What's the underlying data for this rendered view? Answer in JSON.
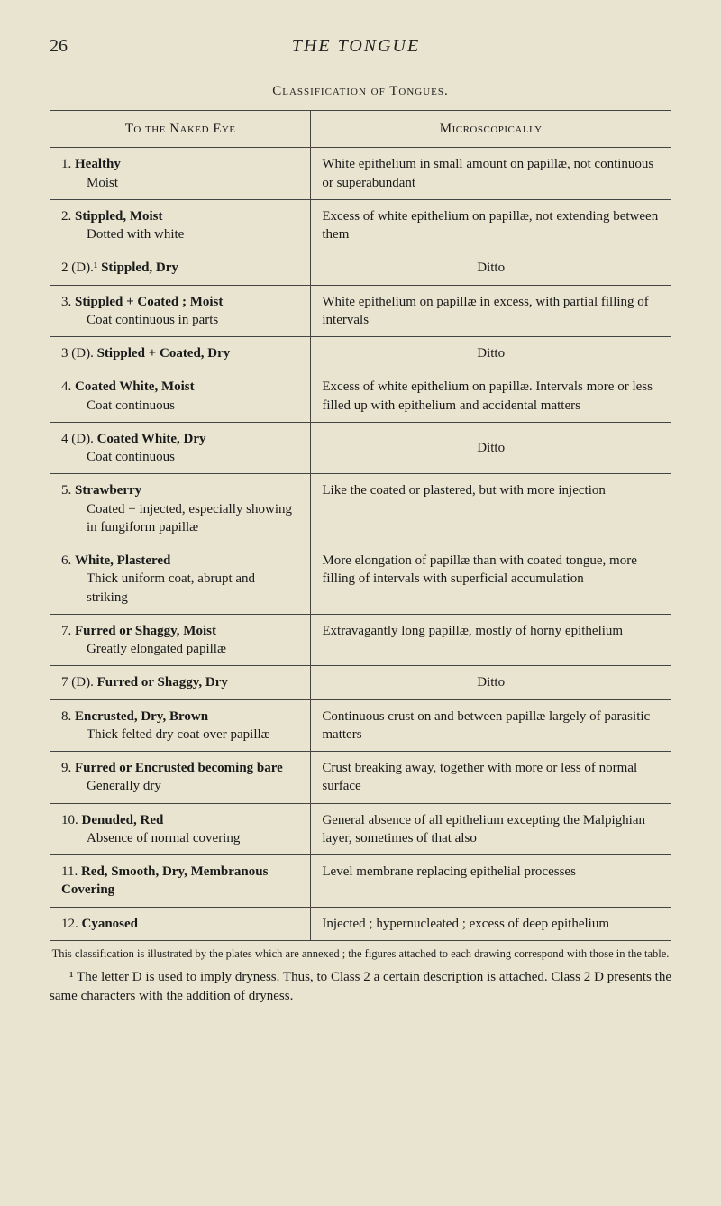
{
  "page_number": "26",
  "book_title": "THE TONGUE",
  "section_title": "Classification of Tongues.",
  "table": {
    "header_left": "To the Naked Eye",
    "header_right": "Microscopically",
    "rows": [
      {
        "num": "1.",
        "main": "Healthy",
        "sub": "Moist",
        "right": "White epithelium in small amount on papillæ, not continuous or superabundant"
      },
      {
        "num": "2.",
        "main": "Stippled, Moist",
        "sub": "Dotted with white",
        "right": "Excess of white epithelium on papillæ, not extending between them"
      },
      {
        "num": "2 (D).¹",
        "main": "Stippled, Dry",
        "sub": "",
        "right": "Ditto"
      },
      {
        "num": "3.",
        "main": "Stippled + Coated ; Moist",
        "sub": "Coat continuous in parts",
        "right": "White epithelium on papillæ in excess, with partial filling of intervals"
      },
      {
        "num": "3 (D).",
        "main": "Stippled + Coated, Dry",
        "sub": "",
        "right": "Ditto"
      },
      {
        "num": "4.",
        "main": "Coated White, Moist",
        "sub": "Coat continuous",
        "right": "Excess of white epithelium on papillæ. Intervals more or less filled up with epithelium and accidental matters"
      },
      {
        "num": "4 (D).",
        "main": "Coated White, Dry",
        "sub": "Coat continuous",
        "right": "Ditto"
      },
      {
        "num": "5.",
        "main": "Strawberry",
        "sub": "Coated + injected, especially showing in fungiform papillæ",
        "right": "Like the coated or plastered, but with more injection"
      },
      {
        "num": "6.",
        "main": "White, Plastered",
        "sub": "Thick uniform coat, abrupt and striking",
        "right": "More elongation of papillæ than with coated tongue, more filling of intervals with superficial accumulation"
      },
      {
        "num": "7.",
        "main": "Furred or Shaggy, Moist",
        "sub": "Greatly elongated papillæ",
        "right": "Extravagantly long papillæ, mostly of horny epithelium"
      },
      {
        "num": "7 (D).",
        "main": "Furred or Shaggy, Dry",
        "sub": "",
        "right": "Ditto"
      },
      {
        "num": "8.",
        "main": "Encrusted, Dry, Brown",
        "sub": "Thick felted dry coat over papillæ",
        "right": "Continuous crust on and between papillæ largely of parasitic matters"
      },
      {
        "num": "9.",
        "main": "Furred or Encrusted becoming bare",
        "sub": "Generally dry",
        "right": "Crust breaking away, together with more or less of normal surface"
      },
      {
        "num": "10.",
        "main": "Denuded, Red",
        "sub": "Absence of normal covering",
        "right": "General absence of all epithelium excepting the Malpighian layer, sometimes of that also"
      },
      {
        "num": "11.",
        "main": "Red, Smooth, Dry, Membranous Covering",
        "sub": "",
        "right": "Level membrane replacing epithelial processes"
      },
      {
        "num": "12.",
        "main": "Cyanosed",
        "sub": "",
        "right": "Injected ; hypernucleated ; excess of deep epithelium"
      }
    ]
  },
  "footnote_line": "This classification is illustrated by the plates which are annexed ; the figures attached to each drawing correspond with those in the table.",
  "footnote_para": "¹ The letter D is used to imply dryness. Thus, to Class 2 a certain description is attached. Class 2 D presents the same characters with the addition of dryness."
}
